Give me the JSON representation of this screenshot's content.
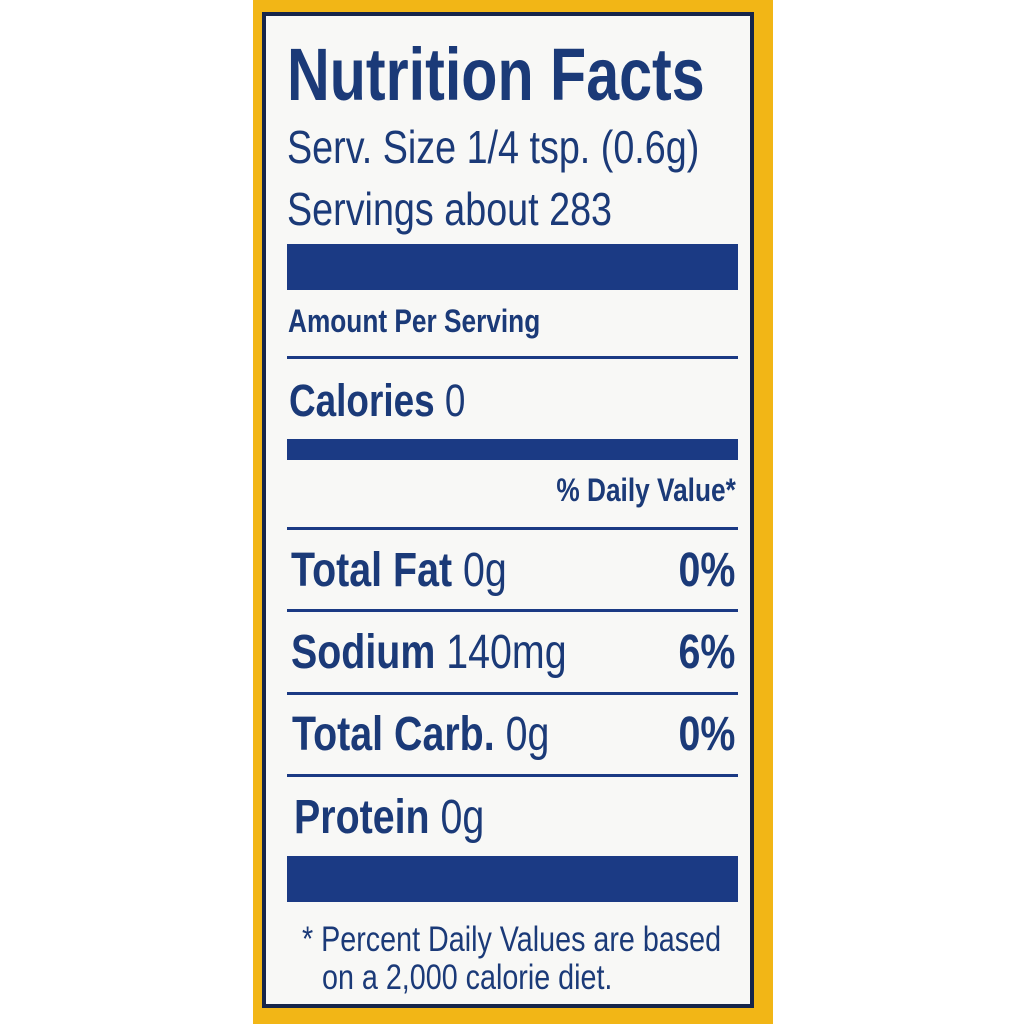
{
  "label": {
    "title": "Nutrition Facts",
    "serving_size": "Serv. Size 1/4 tsp. (0.6g)",
    "servings": "Servings about 283",
    "amount_per_serving": "Amount Per Serving",
    "calories": {
      "label": "Calories",
      "value": "0"
    },
    "daily_value_header": "% Daily Value*",
    "nutrients": [
      {
        "name": "Total Fat",
        "amount": "0g",
        "dv": "0%"
      },
      {
        "name": "Sodium",
        "amount": "140mg",
        "dv": "6%"
      },
      {
        "name": "Total Carb.",
        "amount": "0g",
        "dv": "0%"
      },
      {
        "name": "Protein",
        "amount": "0g",
        "dv": ""
      }
    ],
    "footnote_line1": "* Percent Daily Values are based",
    "footnote_line2": "on a 2,000 calorie diet."
  },
  "colors": {
    "ink": "#1b3a78",
    "package": "#f2b616",
    "panel": "#f8f8f6"
  }
}
